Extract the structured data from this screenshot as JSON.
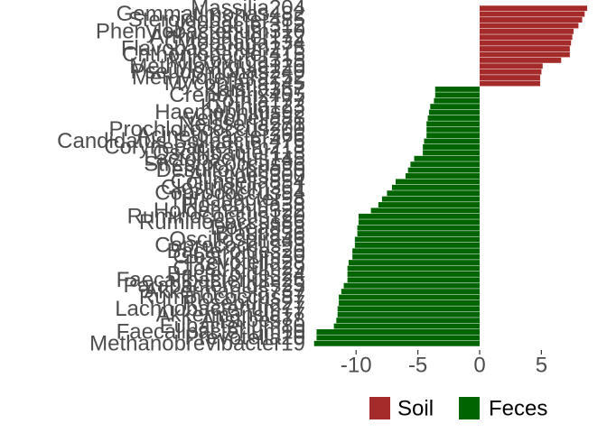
{
  "chart_data": {
    "type": "bar",
    "orientation": "horizontal",
    "xlim": [
      -13.6,
      8.7
    ],
    "xticks": [
      -10,
      -5,
      0,
      5
    ],
    "xtick_labels": [
      "-10",
      "-5",
      "0",
      "5"
    ],
    "grid": false,
    "legend": {
      "position": "bottom-right",
      "entries": [
        {
          "name": "Soil",
          "color": "#A52A2A"
        },
        {
          "name": "Feces",
          "color": "#006400"
        }
      ]
    },
    "bars": [
      {
        "label": "Massilia204",
        "value": 8.7,
        "group": "Soil"
      },
      {
        "label": "Gemmatimonas482",
        "value": 8.5,
        "group": "Soil"
      },
      {
        "label": "Steroidobacter485",
        "value": 8.3,
        "group": "Soil"
      },
      {
        "label": "Lysobacter312",
        "value": 8.0,
        "group": "Soil"
      },
      {
        "label": "Phenylobacterium310",
        "value": 7.6,
        "group": "Soil"
      },
      {
        "label": "Arthrobacter172",
        "value": 7.5,
        "group": "Soil"
      },
      {
        "label": "Cytophaga134",
        "value": 7.4,
        "group": "Soil"
      },
      {
        "label": "Flavobacterium275",
        "value": 7.3,
        "group": "Soil"
      },
      {
        "label": "Chthoniobacter415",
        "value": 7.3,
        "group": "Soil"
      },
      {
        "label": "Microvirga315",
        "value": 6.6,
        "group": "Soil"
      },
      {
        "label": "Methylovirgula120",
        "value": 5.1,
        "group": "Soil"
      },
      {
        "label": "Pseudomonas240",
        "value": 5.0,
        "group": "Soil"
      },
      {
        "label": "Methylotenera252",
        "value": 4.9,
        "group": "Soil"
      },
      {
        "label": "Mycoplana145",
        "value": 4.9,
        "group": "Soil"
      },
      {
        "label": "Kaistia367",
        "value": -3.6,
        "group": "Feces"
      },
      {
        "label": "Crenothrix405",
        "value": -3.6,
        "group": "Feces"
      },
      {
        "label": "Rothia177",
        "value": -3.7,
        "group": "Feces"
      },
      {
        "label": "Kurthia123",
        "value": -4.0,
        "group": "Feces"
      },
      {
        "label": "Haemophilus92",
        "value": -4.1,
        "group": "Feces"
      },
      {
        "label": "Veillonella88",
        "value": -4.2,
        "group": "Feces"
      },
      {
        "label": "Neisseria271",
        "value": -4.3,
        "group": "Feces"
      },
      {
        "label": "Prochlorococcus200",
        "value": -4.3,
        "group": "Feces"
      },
      {
        "label": "Acinetobacter366",
        "value": -4.3,
        "group": "Feces"
      },
      {
        "label": "Candidatus Solibacter476",
        "value": -4.5,
        "group": "Feces"
      },
      {
        "label": "Corynebacterium218",
        "value": -4.6,
        "group": "Feces"
      },
      {
        "label": "Oscillibacter113",
        "value": -4.6,
        "group": "Feces"
      },
      {
        "label": "Lactobacillus145",
        "value": -5.3,
        "group": "Feces"
      },
      {
        "label": "Streptococcus96",
        "value": -5.6,
        "group": "Feces"
      },
      {
        "label": "Desulfovibrio80",
        "value": -5.8,
        "group": "Feces"
      },
      {
        "label": "Alistipes300",
        "value": -6.0,
        "group": "Feces"
      },
      {
        "label": "Collinsella854",
        "value": -6.8,
        "group": "Feces"
      },
      {
        "label": "Clostridium361",
        "value": -7.1,
        "group": "Feces"
      },
      {
        "label": "Coprococcus94",
        "value": -7.5,
        "group": "Feces"
      },
      {
        "label": "Turicibacter98",
        "value": -7.9,
        "group": "Feces"
      },
      {
        "label": "Roseburia38",
        "value": -8.2,
        "group": "Feces"
      },
      {
        "label": "Holdemania322",
        "value": -8.8,
        "group": "Feces"
      },
      {
        "label": "Ruminococcus120",
        "value": -9.8,
        "group": "Feces"
      },
      {
        "label": "Ruminococcus86",
        "value": -9.8,
        "group": "Feces"
      },
      {
        "label": "Dorea888",
        "value": -9.9,
        "group": "Feces"
      },
      {
        "label": "Blautia36",
        "value": -9.9,
        "group": "Feces"
      },
      {
        "label": "Oscillospira46",
        "value": -10.1,
        "group": "Feces"
      },
      {
        "label": "Coprococcus93",
        "value": -10.1,
        "group": "Feces"
      },
      {
        "label": "Bacteroides20",
        "value": -10.3,
        "group": "Feces"
      },
      {
        "label": "Clostridium30",
        "value": -10.3,
        "group": "Feces"
      },
      {
        "label": "Prevotella28",
        "value": -10.6,
        "group": "Feces"
      },
      {
        "label": "Clostridium29",
        "value": -10.7,
        "group": "Feces"
      },
      {
        "label": "Bacteroides24",
        "value": -10.7,
        "group": "Feces"
      },
      {
        "label": "Faecalibacterium26",
        "value": -10.7,
        "group": "Feces"
      },
      {
        "label": "Parabacteroides25",
        "value": -11.0,
        "group": "Feces"
      },
      {
        "label": "Akkermansia737",
        "value": -11.2,
        "group": "Feces"
      },
      {
        "label": "Ruminococcus87",
        "value": -11.4,
        "group": "Feces"
      },
      {
        "label": "Roseburia27",
        "value": -11.4,
        "group": "Feces"
      },
      {
        "label": "Lachnobacterium77",
        "value": -11.5,
        "group": "Feces"
      },
      {
        "label": "Akkermansia17",
        "value": -11.5,
        "group": "Feces"
      },
      {
        "label": "Alistipes78",
        "value": -11.6,
        "group": "Feces"
      },
      {
        "label": "Eubacterium80",
        "value": -11.8,
        "group": "Feces"
      },
      {
        "label": "Faecalibacterium10",
        "value": -13.2,
        "group": "Feces"
      },
      {
        "label": "Prevotella20",
        "value": -13.2,
        "group": "Feces"
      },
      {
        "label": "Methanobrevibacter19",
        "value": -13.4,
        "group": "Feces"
      }
    ]
  }
}
